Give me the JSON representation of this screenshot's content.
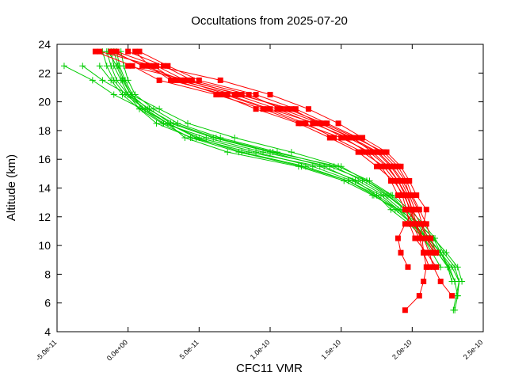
{
  "chart_data": {
    "type": "line",
    "title": "Occultations from 2025-07-20",
    "xlabel": "CFC11 VMR",
    "ylabel": "Altitude (km)",
    "xlim": [
      -5e-11,
      2.5e-10
    ],
    "ylim": [
      4,
      24
    ],
    "x_ticks": [
      {
        "value": -5e-11,
        "label": "-5.0e-11"
      },
      {
        "value": 0,
        "label": "0.0e+00"
      },
      {
        "value": 5e-11,
        "label": "5.0e-11"
      },
      {
        "value": 1e-10,
        "label": "1.0e-10"
      },
      {
        "value": 1.5e-10,
        "label": "1.5e-10"
      },
      {
        "value": 2e-10,
        "label": "2.0e-10"
      },
      {
        "value": 2.5e-10,
        "label": "2.5e-10"
      }
    ],
    "y_ticks": [
      {
        "value": 4,
        "label": "4"
      },
      {
        "value": 6,
        "label": "6"
      },
      {
        "value": 8,
        "label": "8"
      },
      {
        "value": 10,
        "label": "10"
      },
      {
        "value": 12,
        "label": "12"
      },
      {
        "value": 14,
        "label": "14"
      },
      {
        "value": 16,
        "label": "16"
      },
      {
        "value": 18,
        "label": "18"
      },
      {
        "value": 20,
        "label": "20"
      },
      {
        "value": 22,
        "label": "22"
      },
      {
        "value": 24,
        "label": "24"
      }
    ],
    "grid": false,
    "colors": {
      "red_series": "#ff0000",
      "green_series": "#00cc00"
    },
    "red_profiles": [
      {
        "alt": [
          23.5,
          22.5,
          21.5,
          20.5,
          19.5,
          18.5,
          17.5,
          16.5,
          15.5,
          14.5,
          13.5,
          12.5,
          11.5,
          10.5,
          9.5,
          8.5,
          7.5,
          6.5
        ],
        "vmr": [
          -2.3e-11,
          3e-12,
          2.2e-11,
          6.2e-11,
          9.5e-11,
          1.22e-10,
          1.5e-10,
          1.7e-10,
          1.82e-10,
          1.9e-10,
          1.95e-10,
          1.98e-10,
          2.02e-10,
          2.08e-10,
          2.12e-10,
          2.15e-10,
          2.2e-10,
          2.28e-10
        ]
      },
      {
        "alt": [
          23.5,
          22.5,
          21.5,
          20.5,
          19.5,
          18.5,
          17.5,
          16.5,
          15.5,
          14.5,
          13.5,
          12.5,
          11.5,
          10.5,
          9.5,
          8.5,
          7.5,
          6.5,
          5.5
        ],
        "vmr": [
          -1e-11,
          1e-11,
          3.5e-11,
          7.5e-11,
          1.05e-10,
          1.3e-10,
          1.55e-10,
          1.75e-10,
          1.85e-10,
          1.92e-10,
          1.97e-10,
          2e-10,
          2.03e-10,
          2.07e-10,
          2.08e-10,
          2.1e-10,
          2.08e-10,
          2.05e-10,
          1.95e-10
        ]
      },
      {
        "alt": [
          23.5,
          22.5,
          21.5,
          20.5,
          19.5,
          18.5,
          17.5,
          16.5,
          15.5,
          14.5,
          13.5,
          12.5,
          11.5,
          10.5,
          9.5,
          8.5
        ],
        "vmr": [
          5e-12,
          1.5e-11,
          3e-11,
          6.8e-11,
          9.8e-11,
          1.25e-10,
          1.45e-10,
          1.65e-10,
          1.8e-10,
          1.88e-10,
          1.93e-10,
          1.96e-10,
          1.98e-10,
          2.02e-10,
          2.1e-10,
          2.17e-10
        ]
      },
      {
        "alt": [
          23.5,
          22.5,
          21.5,
          20.5,
          19.5,
          18.5,
          17.5,
          16.5,
          15.5,
          14.5,
          13.5,
          12.5,
          11.5,
          10.5,
          9.5
        ],
        "vmr": [
          -8e-12,
          2e-11,
          4e-11,
          8e-11,
          1.12e-10,
          1.38e-10,
          1.6e-10,
          1.8e-10,
          1.9e-10,
          1.96e-10,
          2e-10,
          2.05e-10,
          2.1e-10,
          2.13e-10,
          2.17e-10
        ]
      },
      {
        "alt": [
          23.5,
          22.5,
          21.5,
          20.5,
          19.5,
          18.5,
          17.5,
          16.5,
          15.5,
          14.5,
          13.5,
          12.5,
          11.5,
          10.5,
          9.5,
          8.5
        ],
        "vmr": [
          8e-12,
          2.8e-11,
          5e-11,
          9e-11,
          1.18e-10,
          1.4e-10,
          1.62e-10,
          1.78e-10,
          1.88e-10,
          1.95e-10,
          1.98e-10,
          2.02e-10,
          1.95e-10,
          1.9e-10,
          1.92e-10,
          1.97e-10
        ]
      },
      {
        "alt": [
          23.5,
          22.5,
          21.5,
          20.5,
          19.5,
          18.5,
          17.5,
          16.5,
          15.5,
          14.5,
          13.5,
          12.5,
          11.5,
          10.5
        ],
        "vmr": [
          -1.2e-11,
          1.2e-11,
          3.8e-11,
          7e-11,
          1e-10,
          1.32e-10,
          1.52e-10,
          1.68e-10,
          1.78e-10,
          1.85e-10,
          1.9e-10,
          1.95e-10,
          2e-10,
          2.05e-10
        ]
      },
      {
        "alt": [
          23.5,
          22.5,
          21.5,
          20.5,
          19.5,
          18.5,
          17.5,
          16.5,
          15.5,
          14.5,
          13.5,
          12.5,
          11.5,
          10.5,
          9.5
        ],
        "vmr": [
          0,
          2.5e-11,
          4.5e-11,
          8.5e-11,
          1.08e-10,
          1.35e-10,
          1.58e-10,
          1.72e-10,
          1.83e-10,
          1.9e-10,
          1.96e-10,
          2e-10,
          2.06e-10,
          2.1e-10,
          2.15e-10
        ]
      },
      {
        "alt": [
          23.5,
          22.5,
          21.5,
          20.5,
          19.5,
          18.5,
          17.5,
          16.5,
          15.5,
          14.5,
          13.5,
          12.5,
          11.5,
          10.5
        ],
        "vmr": [
          -2e-11,
          1.8e-11,
          3.3e-11,
          6.5e-11,
          9e-11,
          1.2e-10,
          1.42e-10,
          1.62e-10,
          1.75e-10,
          1.87e-10,
          1.94e-10,
          1.99e-10,
          2.02e-10,
          2.06e-10
        ]
      },
      {
        "alt": [
          22.5,
          21.5,
          20.5,
          19.5,
          18.5,
          17.5,
          16.5,
          15.5,
          14.5,
          13.5,
          12.5,
          11.5,
          10.5,
          9.5,
          8.5
        ],
        "vmr": [
          2e-11,
          6.5e-11,
          1e-10,
          1.27e-10,
          1.48e-10,
          1.65e-10,
          1.82e-10,
          1.92e-10,
          1.98e-10,
          2.03e-10,
          2.1e-10,
          2.08e-10,
          2.05e-10,
          2.08e-10,
          2.12e-10
        ]
      },
      {
        "alt": [
          22.5,
          21.5,
          20.5,
          19.5,
          18.5,
          17.5,
          16.5,
          15.5,
          14.5,
          13.5,
          12.5,
          11.5,
          10.5,
          9.5
        ],
        "vmr": [
          0,
          4.2e-11,
          7.8e-11,
          1.15e-10,
          1.35e-10,
          1.57e-10,
          1.76e-10,
          1.86e-10,
          1.93e-10,
          1.99e-10,
          2.04e-10,
          2.07e-10,
          2.11e-10,
          2.16e-10
        ]
      }
    ],
    "green_profiles": [
      {
        "alt": [
          23.5,
          22.5,
          21.5,
          20.5,
          19.5,
          18.5,
          17.5,
          16.5,
          15.5,
          14.5,
          13.5,
          12.5,
          11.5,
          10.5,
          9.5,
          8.5,
          7.5,
          6.5,
          5.5
        ],
        "vmr": [
          -1.2e-11,
          -1e-11,
          -5e-12,
          0,
          8e-12,
          2e-11,
          4.5e-11,
          8.5e-11,
          1.35e-10,
          1.62e-10,
          1.8e-10,
          1.92e-10,
          2.02e-10,
          2.1e-10,
          2.18e-10,
          2.25e-10,
          2.3e-10,
          2.32e-10,
          2.3e-10
        ]
      },
      {
        "alt": [
          23.5,
          22.5,
          21.5,
          20.5,
          19.5,
          18.5,
          17.5,
          16.5,
          15.5,
          14.5,
          13.5,
          12.5,
          11.5,
          10.5,
          9.5,
          8.5,
          7.5,
          6.5,
          5.5
        ],
        "vmr": [
          -8e-12,
          -6e-12,
          -2e-12,
          3e-12,
          1e-11,
          2.5e-11,
          5.5e-11,
          9.5e-11,
          1.42e-10,
          1.68e-10,
          1.83e-10,
          1.95e-10,
          2.05e-10,
          2.15e-10,
          2.2e-10,
          2.28e-10,
          2.33e-10,
          2.31e-10,
          2.29e-10
        ]
      },
      {
        "alt": [
          22.5,
          21.5,
          20.5,
          19.5,
          18.5,
          17.5,
          16.5,
          15.5,
          14.5,
          13.5,
          12.5,
          11.5,
          10.5,
          9.5,
          8.5,
          7.5
        ],
        "vmr": [
          -3.2e-11,
          -1.8e-11,
          0,
          1.2e-11,
          2.8e-11,
          4e-11,
          7e-11,
          1.2e-10,
          1.52e-10,
          1.72e-10,
          1.9e-10,
          2.05e-10,
          2.15e-10,
          2.24e-10,
          2.32e-10,
          2.35e-10
        ]
      },
      {
        "alt": [
          23.5,
          22.5,
          21.5,
          20.5,
          19.5,
          18.5,
          17.5,
          16.5,
          15.5,
          14.5,
          13.5,
          12.5,
          11.5,
          10.5,
          9.5,
          8.5
        ],
        "vmr": [
          -1.5e-11,
          -1.2e-11,
          -8e-12,
          0,
          1.5e-11,
          3e-11,
          6e-11,
          1e-10,
          1.38e-10,
          1.6e-10,
          1.75e-10,
          1.85e-10,
          1.98e-10,
          2.08e-10,
          2.14e-10,
          2.2e-10
        ]
      },
      {
        "alt": [
          23.5,
          22.5,
          21.5,
          20.5,
          19.5,
          18.5,
          17.5,
          16.5,
          15.5,
          14.5,
          13.5,
          12.5,
          11.5,
          10.5,
          9.5,
          8.5,
          7.5
        ],
        "vmr": [
          -5e-12,
          -3e-12,
          0,
          5e-12,
          1.8e-11,
          3.5e-11,
          6.5e-11,
          1.05e-10,
          1.45e-10,
          1.65e-10,
          1.82e-10,
          1.95e-10,
          2.05e-10,
          2.12e-10,
          2.2e-10,
          2.25e-10,
          2.28e-10
        ]
      },
      {
        "alt": [
          22.5,
          21.5,
          20.5,
          19.5,
          18.5,
          17.5,
          16.5,
          15.5,
          14.5,
          13.5,
          12.5,
          11.5,
          10.5,
          9.5,
          8.5
        ],
        "vmr": [
          -4.5e-11,
          -2.5e-11,
          -1e-11,
          1e-11,
          2.8e-11,
          4.8e-11,
          8e-11,
          1.25e-10,
          1.55e-10,
          1.75e-10,
          1.9e-10,
          2e-10,
          2.1e-10,
          2.18e-10,
          2.25e-10
        ]
      },
      {
        "alt": [
          23.5,
          22.5,
          21.5,
          20.5,
          19.5,
          18.5,
          17.5,
          16.5,
          15.5,
          14.5,
          13.5,
          12.5,
          11.5,
          10.5,
          9.5
        ],
        "vmr": [
          -1.8e-11,
          -1.5e-11,
          -1e-11,
          -2e-12,
          1.2e-11,
          2.8e-11,
          5e-11,
          9e-11,
          1.3e-10,
          1.58e-10,
          1.78e-10,
          1.9e-10,
          2e-10,
          2.08e-10,
          2.16e-10
        ]
      },
      {
        "alt": [
          23.5,
          22.5,
          21.5,
          20.5,
          19.5,
          18.5,
          17.5,
          16.5,
          15.5,
          14.5,
          13.5,
          12.5,
          11.5,
          10.5,
          9.5,
          8.5,
          7.5,
          6.5
        ],
        "vmr": [
          -1e-11,
          -7e-12,
          -3e-12,
          2e-12,
          1.4e-11,
          3.2e-11,
          6.2e-11,
          1.02e-10,
          1.48e-10,
          1.7e-10,
          1.86e-10,
          1.98e-10,
          2.08e-10,
          2.16e-10,
          2.22e-10,
          2.3e-10,
          2.33e-10,
          2.32e-10
        ]
      },
      {
        "alt": [
          23.5,
          22.5,
          21.5,
          20.5,
          19.5,
          18.5,
          17.5,
          16.5,
          15.5,
          14.5,
          13.5,
          12.5,
          11.5,
          10.5
        ],
        "vmr": [
          -1.4e-11,
          -8e-12,
          -4e-12,
          2e-12,
          2.2e-11,
          4.2e-11,
          7.5e-11,
          1.15e-10,
          1.5e-10,
          1.68e-10,
          1.85e-10,
          1.95e-10,
          2.04e-10,
          2.1e-10
        ]
      },
      {
        "alt": [
          22.5,
          21.5,
          20.5,
          19.5,
          18.5,
          17.5,
          16.5,
          15.5,
          14.5,
          13.5,
          12.5,
          11.5,
          10.5,
          9.5,
          8.5,
          7.5
        ],
        "vmr": [
          -2e-11,
          -1.2e-11,
          -4e-12,
          8e-12,
          2.4e-11,
          4.4e-11,
          7.8e-11,
          1.22e-10,
          1.55e-10,
          1.73e-10,
          1.88e-10,
          2e-10,
          2.11e-10,
          2.2e-10,
          2.26e-10,
          2.3e-10
        ]
      }
    ]
  }
}
